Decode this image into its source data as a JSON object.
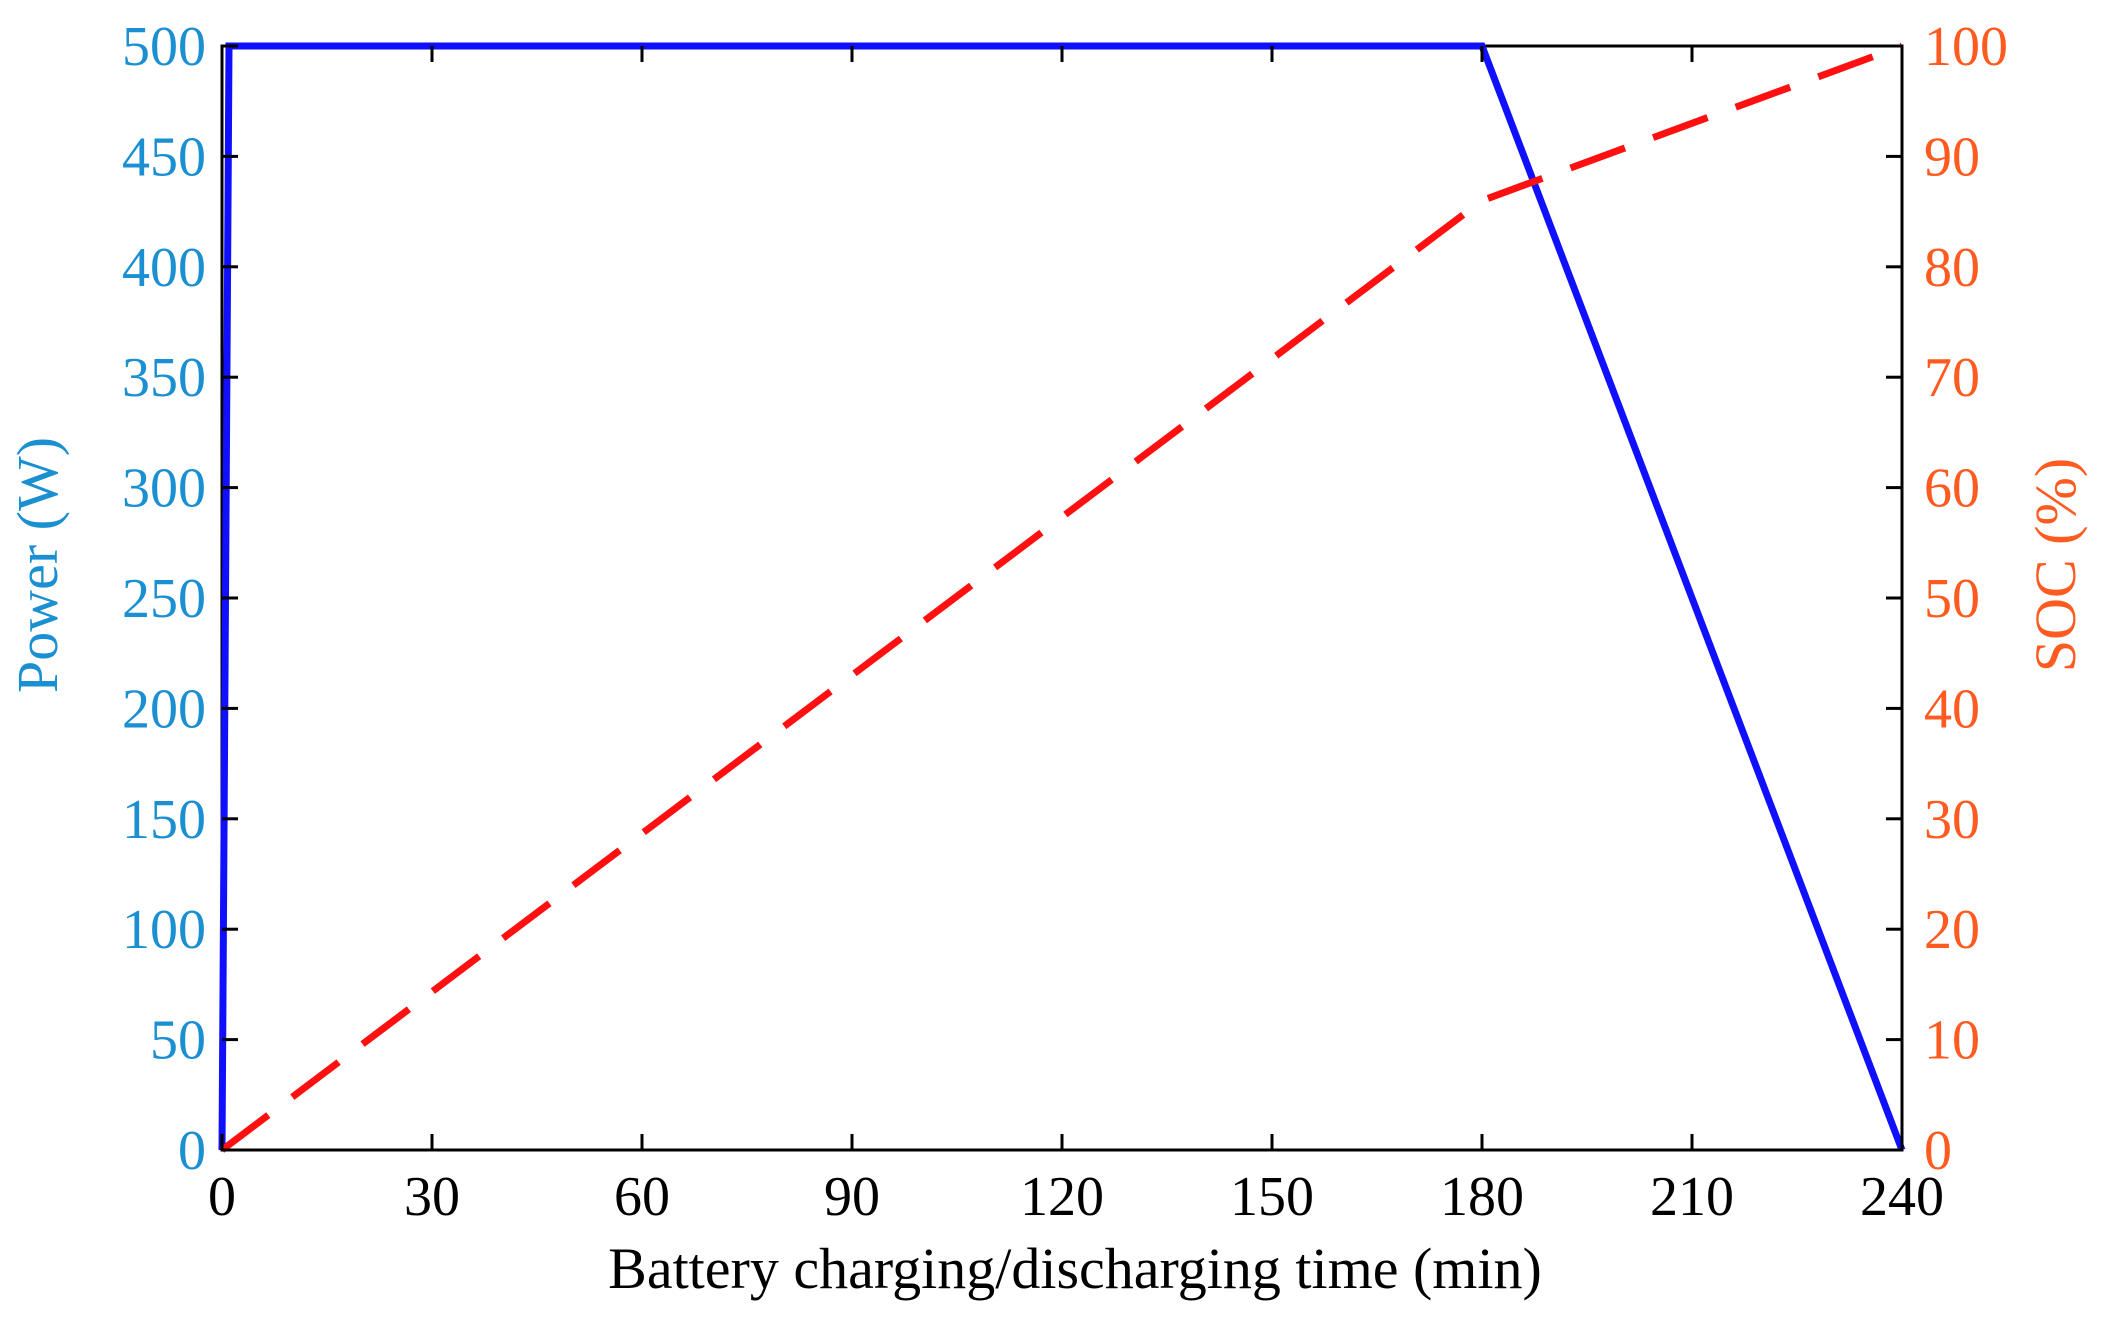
{
  "chart_data": {
    "type": "line",
    "xlabel": "Battery charging/discharging time (min)",
    "ylabel_left": "Power (W)",
    "ylabel_right": "SOC (%)",
    "xlim": [
      0,
      240
    ],
    "ylim_left": [
      0,
      500
    ],
    "ylim_right": [
      0,
      100
    ],
    "x_ticks": [
      0,
      30,
      60,
      90,
      120,
      150,
      180,
      210,
      240
    ],
    "y_left_ticks": [
      0,
      50,
      100,
      150,
      200,
      250,
      300,
      350,
      400,
      450,
      500
    ],
    "y_right_ticks": [
      0,
      10,
      20,
      30,
      40,
      50,
      60,
      70,
      80,
      90,
      100
    ],
    "x_tick_labels": [
      "0",
      "30",
      "60",
      "90",
      "120",
      "150",
      "180",
      "210",
      "240"
    ],
    "y_left_tick_labels": [
      "0",
      "50",
      "100",
      "150",
      "200",
      "250",
      "300",
      "350",
      "400",
      "450",
      "500"
    ],
    "y_right_tick_labels": [
      "0",
      "10",
      "20",
      "30",
      "40",
      "50",
      "60",
      "70",
      "80",
      "90",
      "100"
    ],
    "grid": false,
    "colors": {
      "left_axis": "#1a8fd1",
      "right_axis": "#ff5a1f",
      "power_line": "#1010ff",
      "soc_line": "#ff1010",
      "frame": "#000000"
    },
    "series": [
      {
        "axis": "left",
        "style": "solid",
        "x": [
          0,
          1,
          180,
          240
        ],
        "y": [
          0,
          500,
          500,
          0
        ]
      },
      {
        "axis": "right",
        "style": "dashed",
        "x": [
          0,
          180,
          240
        ],
        "y": [
          0,
          86,
          100
        ]
      }
    ]
  }
}
